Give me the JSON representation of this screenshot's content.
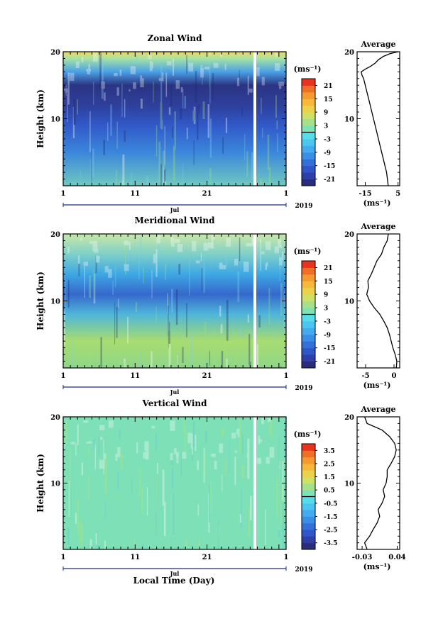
{
  "figure": {
    "year_label": "2019",
    "xaxis_title": "Local Time (Day)"
  },
  "chart_data": [
    {
      "type": "heatmap",
      "title": "Zonal Wind",
      "ylabel": "Height (km)",
      "ylim": [
        0,
        20
      ],
      "yticks": [
        "10",
        "20"
      ],
      "xticks": [
        "1",
        "11",
        "21",
        "1"
      ],
      "month_label": "Jul",
      "colorbar": {
        "unit": "(ms⁻¹)",
        "range": [
          -24,
          24
        ],
        "tick_labels": [
          "21",
          "15",
          "9",
          "3",
          "-3",
          "-9",
          "-15",
          "-21"
        ]
      },
      "average_profile": {
        "title": "Average",
        "unit": "(ms⁻¹)",
        "xlim": [
          -20,
          6
        ],
        "xticks": [
          "-15",
          "5"
        ],
        "points": [
          [
            -1,
            0
          ],
          [
            -1.5,
            1
          ],
          [
            -2,
            2
          ],
          [
            -3,
            3
          ],
          [
            -4,
            4
          ],
          [
            -5,
            5
          ],
          [
            -6,
            6
          ],
          [
            -7,
            7
          ],
          [
            -8,
            8
          ],
          [
            -9,
            9
          ],
          [
            -10,
            10
          ],
          [
            -11,
            11
          ],
          [
            -12,
            12
          ],
          [
            -13,
            13
          ],
          [
            -14,
            14
          ],
          [
            -15,
            15
          ],
          [
            -16,
            16
          ],
          [
            -17,
            16.5
          ],
          [
            -17.5,
            17
          ],
          [
            -15,
            17.4
          ],
          [
            -12,
            17.8
          ],
          [
            -9,
            18.3
          ],
          [
            -7,
            18.8
          ],
          [
            -4,
            19.3
          ],
          [
            0,
            19.7
          ],
          [
            5,
            20
          ]
        ]
      }
    },
    {
      "type": "heatmap",
      "title": "Meridional Wind",
      "ylabel": "Height (km)",
      "ylim": [
        0,
        20
      ],
      "yticks": [
        "10",
        "20"
      ],
      "xticks": [
        "1",
        "11",
        "21",
        "1"
      ],
      "month_label": "Jul",
      "colorbar": {
        "unit": "(ms⁻¹)",
        "range": [
          -24,
          24
        ],
        "tick_labels": [
          "21",
          "15",
          "9",
          "3",
          "-3",
          "-9",
          "-15",
          "-21"
        ]
      },
      "average_profile": {
        "title": "Average",
        "unit": "(ms⁻¹)",
        "xlim": [
          -6.5,
          1
        ],
        "xticks": [
          "-5",
          "0"
        ],
        "points": [
          [
            0.4,
            0
          ],
          [
            0.5,
            1
          ],
          [
            0.2,
            2
          ],
          [
            -0.2,
            3
          ],
          [
            -0.5,
            4
          ],
          [
            -0.8,
            5
          ],
          [
            -1.2,
            6
          ],
          [
            -1.8,
            7
          ],
          [
            -2.5,
            8
          ],
          [
            -3.5,
            9
          ],
          [
            -4.3,
            10
          ],
          [
            -4.8,
            11
          ],
          [
            -4.5,
            12
          ],
          [
            -4.6,
            13
          ],
          [
            -4,
            14
          ],
          [
            -3.5,
            15
          ],
          [
            -3,
            16
          ],
          [
            -2.2,
            17
          ],
          [
            -1.8,
            18
          ],
          [
            -1.2,
            19
          ],
          [
            -1,
            20
          ]
        ]
      }
    },
    {
      "type": "heatmap",
      "title": "Vertical Wind",
      "ylabel": "Height (km)",
      "ylim": [
        0,
        20
      ],
      "yticks": [
        "10",
        "20"
      ],
      "xticks": [
        "1",
        "11",
        "21",
        "1"
      ],
      "month_label": "Jul",
      "colorbar": {
        "unit": "(ms⁻¹)",
        "range": [
          -4,
          4
        ],
        "tick_labels": [
          "3.5",
          "2.5",
          "1.5",
          "0.5",
          "-0.5",
          "-1.5",
          "-2.5",
          "-3.5"
        ]
      },
      "average_profile": {
        "title": "Average",
        "unit": "(ms⁻¹)",
        "xlim": [
          -0.04,
          0.045
        ],
        "xticks": [
          "-0.03",
          "0.04"
        ],
        "points": [
          [
            -0.02,
            0
          ],
          [
            -0.025,
            1
          ],
          [
            -0.015,
            2
          ],
          [
            -0.008,
            3
          ],
          [
            0,
            4
          ],
          [
            0.005,
            5
          ],
          [
            0.002,
            6
          ],
          [
            0.01,
            7
          ],
          [
            0.015,
            8
          ],
          [
            0.012,
            9
          ],
          [
            0.018,
            10
          ],
          [
            0.02,
            11
          ],
          [
            0.02,
            12
          ],
          [
            0.028,
            13
          ],
          [
            0.035,
            14
          ],
          [
            0.038,
            15
          ],
          [
            0.035,
            16
          ],
          [
            0.025,
            17
          ],
          [
            0.01,
            18
          ],
          [
            -0.02,
            19
          ],
          [
            -0.025,
            20
          ]
        ]
      }
    }
  ]
}
